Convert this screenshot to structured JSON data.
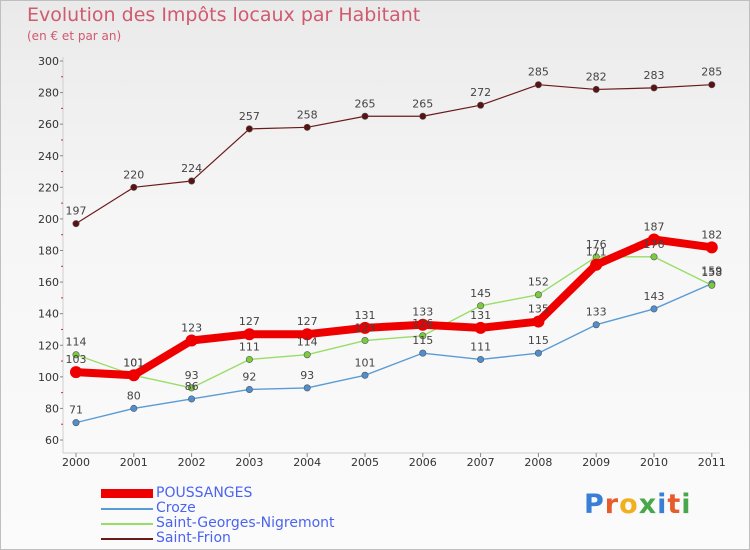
{
  "header": {
    "title": "Evolution des Impôts locaux par Habitant",
    "subtitle": "(en € et par an)"
  },
  "brand": {
    "logo_text": "Proxiti",
    "letters": [
      "P",
      "r",
      "o",
      "x",
      "i",
      "t",
      "i"
    ]
  },
  "chart_data": {
    "type": "line",
    "title": "Evolution des Impôts locaux par Habitant",
    "subtitle": "(en € et par an)",
    "xlabel": "",
    "ylabel": "",
    "ylim": [
      60,
      300
    ],
    "yticks": [
      60,
      80,
      100,
      120,
      140,
      160,
      180,
      200,
      220,
      240,
      260,
      280,
      300
    ],
    "grid": false,
    "legend_position": "bottom-left",
    "x": [
      "2000",
      "2001",
      "2002",
      "2003",
      "2004",
      "2005",
      "2006",
      "2007",
      "2008",
      "2009",
      "2010",
      "2011"
    ],
    "series": [
      {
        "name": "POUSSANGES",
        "color": "#ee0000",
        "values": [
          103,
          101,
          123,
          127,
          127,
          131,
          133,
          131,
          135,
          171,
          187,
          182
        ],
        "labels": [
          "103",
          "101",
          "123",
          "127",
          "127",
          "131",
          "133",
          "131",
          "135",
          "171",
          "187",
          "182"
        ]
      },
      {
        "name": "Croze",
        "color": "#5b9bd5",
        "values": [
          71,
          80,
          86,
          92,
          93,
          101,
          115,
          111,
          115,
          133,
          143,
          159
        ],
        "labels": [
          "71",
          "80",
          "86",
          "92",
          "93",
          "101",
          "115",
          "111",
          "115",
          "133",
          "143",
          "159"
        ]
      },
      {
        "name": "Saint-Georges-Nigremont",
        "color": "#99dd66",
        "values": [
          114,
          101,
          93,
          111,
          114,
          123,
          126,
          145,
          152,
          176,
          176,
          158
        ],
        "labels": [
          "114",
          "101",
          "93",
          "111",
          "114",
          "123",
          "126",
          "145",
          "152",
          "176",
          "176",
          "158"
        ]
      },
      {
        "name": "Saint-Frion",
        "color": "#6b1a1a",
        "values": [
          197,
          220,
          224,
          257,
          258,
          265,
          265,
          272,
          285,
          282,
          283,
          285
        ],
        "labels": [
          "197",
          "220",
          "224",
          "257",
          "258",
          "265",
          "265",
          "272",
          "285",
          "282",
          "283",
          "285"
        ]
      }
    ]
  }
}
